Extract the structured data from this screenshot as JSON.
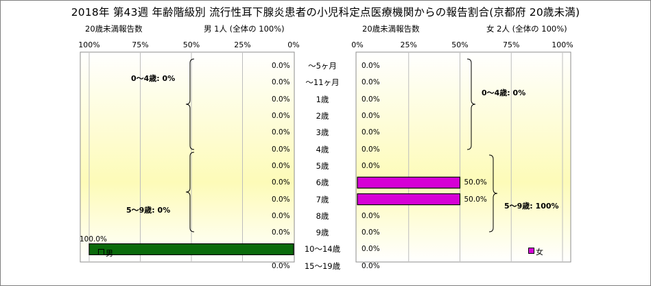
{
  "title": "2018年 第43週 年齢階級別 流行性耳下腺炎患者の小児科定点医療機関からの報告割合(京都府 20歳未満)",
  "male": {
    "header_left": "20歳未満報告数",
    "header_right": "男 1人 (全体の 100%)",
    "legend": "男",
    "bar_color": "#0b6b0b",
    "groups": [
      {
        "label": "0〜4歳: 0%"
      },
      {
        "label": "5〜9歳: 0%"
      }
    ]
  },
  "female": {
    "header_left": "20歳未満報告数",
    "header_right": "女 2人 (全体の 100%)",
    "legend": "女",
    "bar_color": "#d600d6",
    "groups": [
      {
        "label": "0〜4歳: 0%"
      },
      {
        "label": "5〜9歳: 100%"
      }
    ]
  },
  "chart_data": {
    "type": "bar",
    "orientation": "horizontal",
    "layout": "back-to-back pyramid",
    "title": "2018年 第43週 年齢階級別 流行性耳下腺炎患者の小児科定点医療機関からの報告割合(京都府 20歳未満)",
    "categories": [
      "〜5ヶ月",
      "〜11ヶ月",
      "1歳",
      "2歳",
      "3歳",
      "4歳",
      "5歳",
      "6歳",
      "7歳",
      "8歳",
      "9歳",
      "10〜14歳",
      "15〜19歳"
    ],
    "series": [
      {
        "name": "男",
        "values": [
          0,
          0,
          0,
          0,
          0,
          0,
          0,
          0,
          0,
          0,
          0,
          100,
          0
        ],
        "value_labels": [
          "0.0%",
          "0.0%",
          "0.0%",
          "0.0%",
          "0.0%",
          "0.0%",
          "0.0%",
          "0.0%",
          "0.0%",
          "0.0%",
          "0.0%",
          "100.0%",
          "0.0%"
        ]
      },
      {
        "name": "女",
        "values": [
          0,
          0,
          0,
          0,
          0,
          0,
          0,
          50,
          50,
          0,
          0,
          0,
          0
        ],
        "value_labels": [
          "0.0%",
          "0.0%",
          "0.0%",
          "0.0%",
          "0.0%",
          "0.0%",
          "0.0%",
          "50.0%",
          "50.0%",
          "0.0%",
          "0.0%",
          "0.0%",
          "0.0%"
        ]
      }
    ],
    "xlim": [
      0,
      100
    ],
    "left_ticks": [
      "100%",
      "75%",
      "50%",
      "25%",
      "0%"
    ],
    "right_ticks": [
      "0%",
      "25%",
      "50%",
      "75%",
      "100%"
    ],
    "grid": true,
    "legend_position": "bottom"
  }
}
